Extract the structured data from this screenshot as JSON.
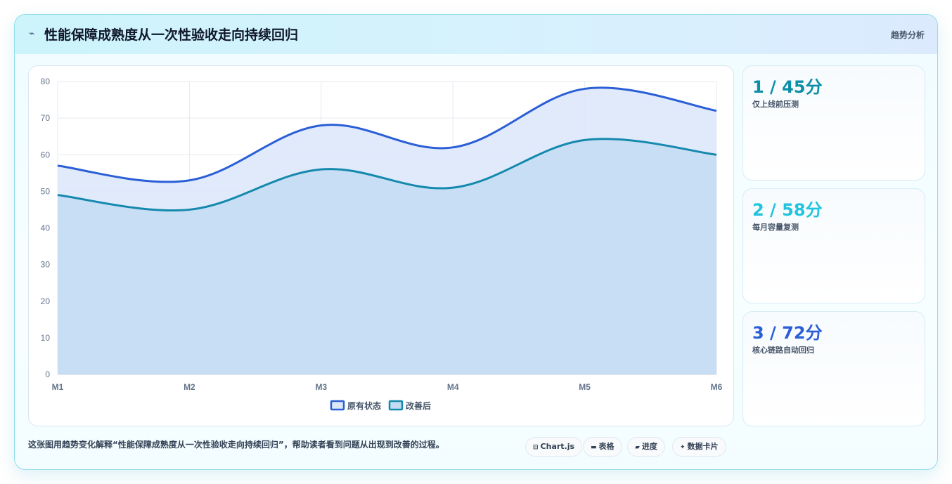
{
  "header": {
    "icon": "wave-icon",
    "title": "性能保障成熟度从一次性验收走向持续回归",
    "tag": "趋势分析"
  },
  "stats": [
    {
      "value": "1 / 45分",
      "label": "仅上线前压测",
      "color": "#0e8fa8"
    },
    {
      "value": "2 / 58分",
      "label": "每月容量复测",
      "color": "#22c3de"
    },
    {
      "value": "3 / 72分",
      "label": "核心链路自动回归",
      "color": "#2b5fd6"
    }
  ],
  "footer": {
    "text": "这张图用趋势变化解释“性能保障成熟度从一次性验收走向持续回归”，帮助读者看到问题从出现到改善的过程。",
    "chips": [
      {
        "icon": "chart-icon",
        "glyph": "⊟",
        "label": "Chart.js"
      },
      {
        "icon": "table-icon",
        "glyph": "▬",
        "label": "表格"
      },
      {
        "icon": "progress-icon",
        "glyph": "▰",
        "label": "进度"
      },
      {
        "icon": "card-icon",
        "glyph": "✦",
        "label": "数据卡片"
      }
    ]
  },
  "chart_data": {
    "type": "area",
    "categories": [
      "M1",
      "M2",
      "M3",
      "M4",
      "M5",
      "M6"
    ],
    "series": [
      {
        "name": "原有状态",
        "values": [
          57,
          53,
          68,
          62,
          78,
          72
        ],
        "color": "#2b5fd6",
        "fill": "#dde8fb"
      },
      {
        "name": "改善后",
        "values": [
          49,
          45,
          56,
          51,
          64,
          60
        ],
        "color": "#1589ad",
        "fill": "#c3dcf2"
      }
    ],
    "ylim": [
      0,
      80
    ],
    "yticks": [
      0,
      10,
      20,
      30,
      40,
      50,
      60,
      70,
      80
    ],
    "grid": true,
    "legend": "bottom"
  }
}
